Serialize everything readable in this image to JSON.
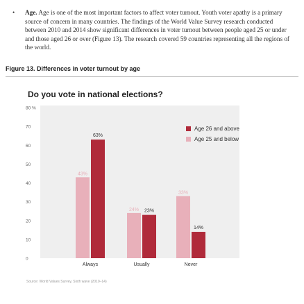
{
  "text": {
    "bullet": "•",
    "lead": "Age.",
    "body": " Age is one of the most important factors to affect voter turnout. Youth voter apathy is a primary source of concern in many countries. The findings of the World Value Survey research conducted between 2010 and 2014 show significant differences in voter turnout between people aged 25 or under and those aged 26 or over (Figure 13). The research covered 59 countries representing all the regions of the world."
  },
  "figure": {
    "caption": "Figure 13. Differences in voter turnout by age"
  },
  "source": "Source: World Values Survey, Sixth wave (2010–14)",
  "colors": {
    "older": "#b02a3a",
    "younger": "#e8b0ba",
    "panel": "#efefef"
  },
  "chart_data": {
    "type": "bar",
    "title": "Do you vote in national elections?",
    "xlabel": "",
    "ylabel": "",
    "ylim": [
      0,
      80
    ],
    "yticks": [
      0,
      10,
      20,
      30,
      40,
      50,
      60,
      70,
      80
    ],
    "ytick_labels": [
      "0",
      "10",
      "20",
      "30",
      "40",
      "50",
      "60",
      "70",
      "80 %"
    ],
    "categories": [
      "Always",
      "Usually",
      "Never"
    ],
    "legend_position": "top-right",
    "grid": false,
    "series": [
      {
        "name": "Age 26 and above",
        "values": [
          63,
          23,
          14
        ],
        "labels": [
          "63%",
          "23%",
          "14%"
        ]
      },
      {
        "name": "Age 25 and below",
        "values": [
          43,
          24,
          33
        ],
        "labels": [
          "43%",
          "24%",
          "33%"
        ]
      }
    ]
  }
}
